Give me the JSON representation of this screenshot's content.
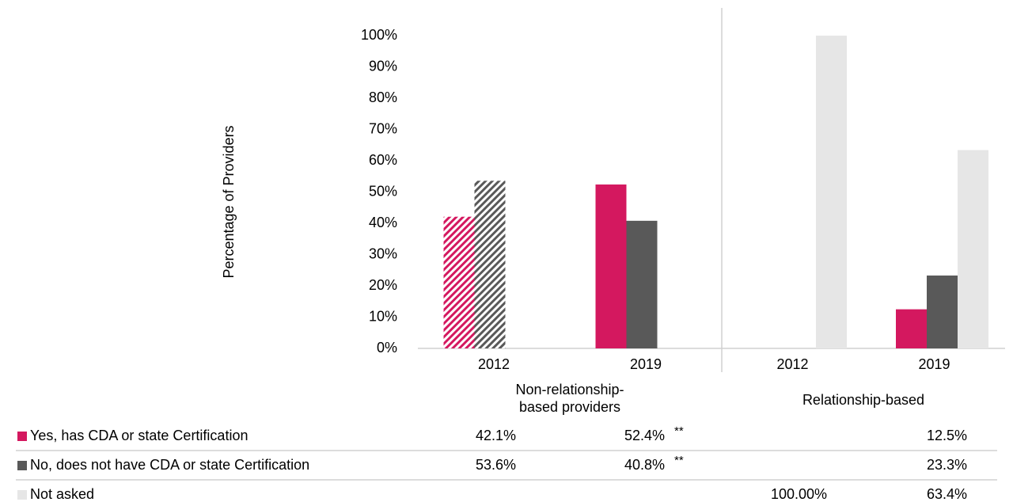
{
  "chart_data": {
    "type": "bar",
    "y_axis_label": "Percentage of  Providers",
    "categories": [
      "2012",
      "2019",
      "2012",
      "2019"
    ],
    "groups": [
      {
        "label": "Non-relationship-based providers",
        "span": 2
      },
      {
        "label": "Relationship-based",
        "span": 2
      }
    ],
    "hatched": [
      true,
      false,
      false,
      false
    ],
    "series": [
      {
        "name": "Yes, has CDA or state Certification",
        "color": "#d4185f",
        "values": [
          42.1,
          52.4,
          null,
          12.5
        ],
        "value_labels": [
          "42.1%",
          "52.4%",
          null,
          "12.5%"
        ]
      },
      {
        "name": "No, does not have CDA or state Certification",
        "color": "#595959",
        "values": [
          53.6,
          40.8,
          null,
          23.3
        ],
        "value_labels": [
          "53.6%",
          "40.8%",
          null,
          "23.3%"
        ]
      },
      {
        "name": "Not asked",
        "color": "#e6e6e6",
        "values": [
          null,
          null,
          100,
          63.4
        ],
        "value_labels": [
          null,
          null,
          "100.00%",
          "63.4%"
        ]
      }
    ],
    "annotations": [
      {
        "series": 0,
        "category": 1,
        "text": "**"
      },
      {
        "series": 1,
        "category": 1,
        "text": "**"
      }
    ],
    "ylim": [
      0,
      100
    ],
    "yticks": [
      {
        "value": 0,
        "label": "0%"
      },
      {
        "value": 10,
        "label": "10%"
      },
      {
        "value": 20,
        "label": "20%"
      },
      {
        "value": 30,
        "label": "30%"
      },
      {
        "value": 40,
        "label": "40%"
      },
      {
        "value": 50,
        "label": "50%"
      },
      {
        "value": 60,
        "label": "60%"
      },
      {
        "value": 70,
        "label": "70%"
      },
      {
        "value": 80,
        "label": "80%"
      },
      {
        "value": 90,
        "label": "90%"
      },
      {
        "value": 100,
        "label": "100%"
      }
    ]
  }
}
